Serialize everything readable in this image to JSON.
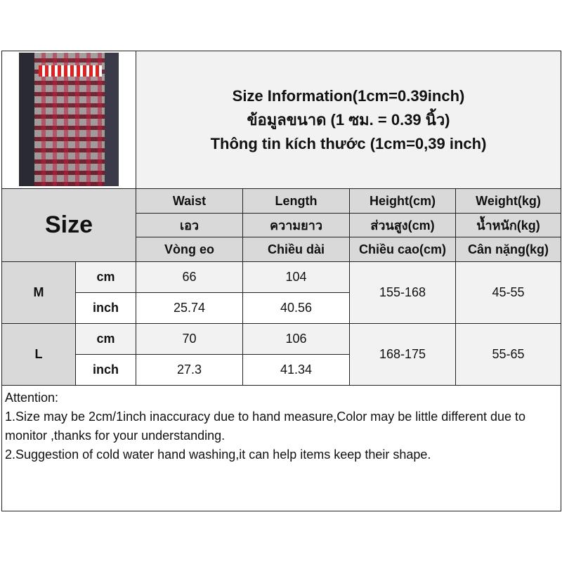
{
  "title": {
    "line1": "Size Information(1cm=0.39inch)",
    "line2": "ข้อมูลขนาด (1 ซม. = 0.39 นิ้ว)",
    "line3": "Thông tin kích thước (1cm=0,39 inch)"
  },
  "size_label": "Size",
  "columns": [
    {
      "en": "Waist",
      "th": "เอว",
      "vi": "Vòng eo"
    },
    {
      "en": "Length",
      "th": "ความยาว",
      "vi": "Chiều dài"
    },
    {
      "en": "Height(cm)",
      "th": "ส่วนสูง(cm)",
      "vi": "Chiều cao(cm)"
    },
    {
      "en": "Weight(kg)",
      "th": "น้ำหนัก(kg)",
      "vi": "Cân nặng(kg)"
    }
  ],
  "rows": [
    {
      "size": "M",
      "cm_label": "cm",
      "inch_label": "inch",
      "waist_cm": "66",
      "length_cm": "104",
      "waist_inch": "25.74",
      "length_inch": "40.56",
      "height": "155-168",
      "weight": "45-55"
    },
    {
      "size": "L",
      "cm_label": "cm",
      "inch_label": "inch",
      "waist_cm": "70",
      "length_cm": "106",
      "waist_inch": "27.3",
      "length_inch": "41.34",
      "height": "168-175",
      "weight": "55-65"
    }
  ],
  "attention": {
    "heading": "Attention:",
    "note1": "1.Size may be 2cm/1inch inaccuracy due to hand measure,Color may be little different due to monitor ,thanks for your understanding.",
    "note2": "2.Suggestion of cold water hand washing,it can help items keep their shape."
  },
  "colors": {
    "header_gray": "#d9d9d9",
    "light_gray": "#f2f2f2",
    "border": "#222222"
  }
}
